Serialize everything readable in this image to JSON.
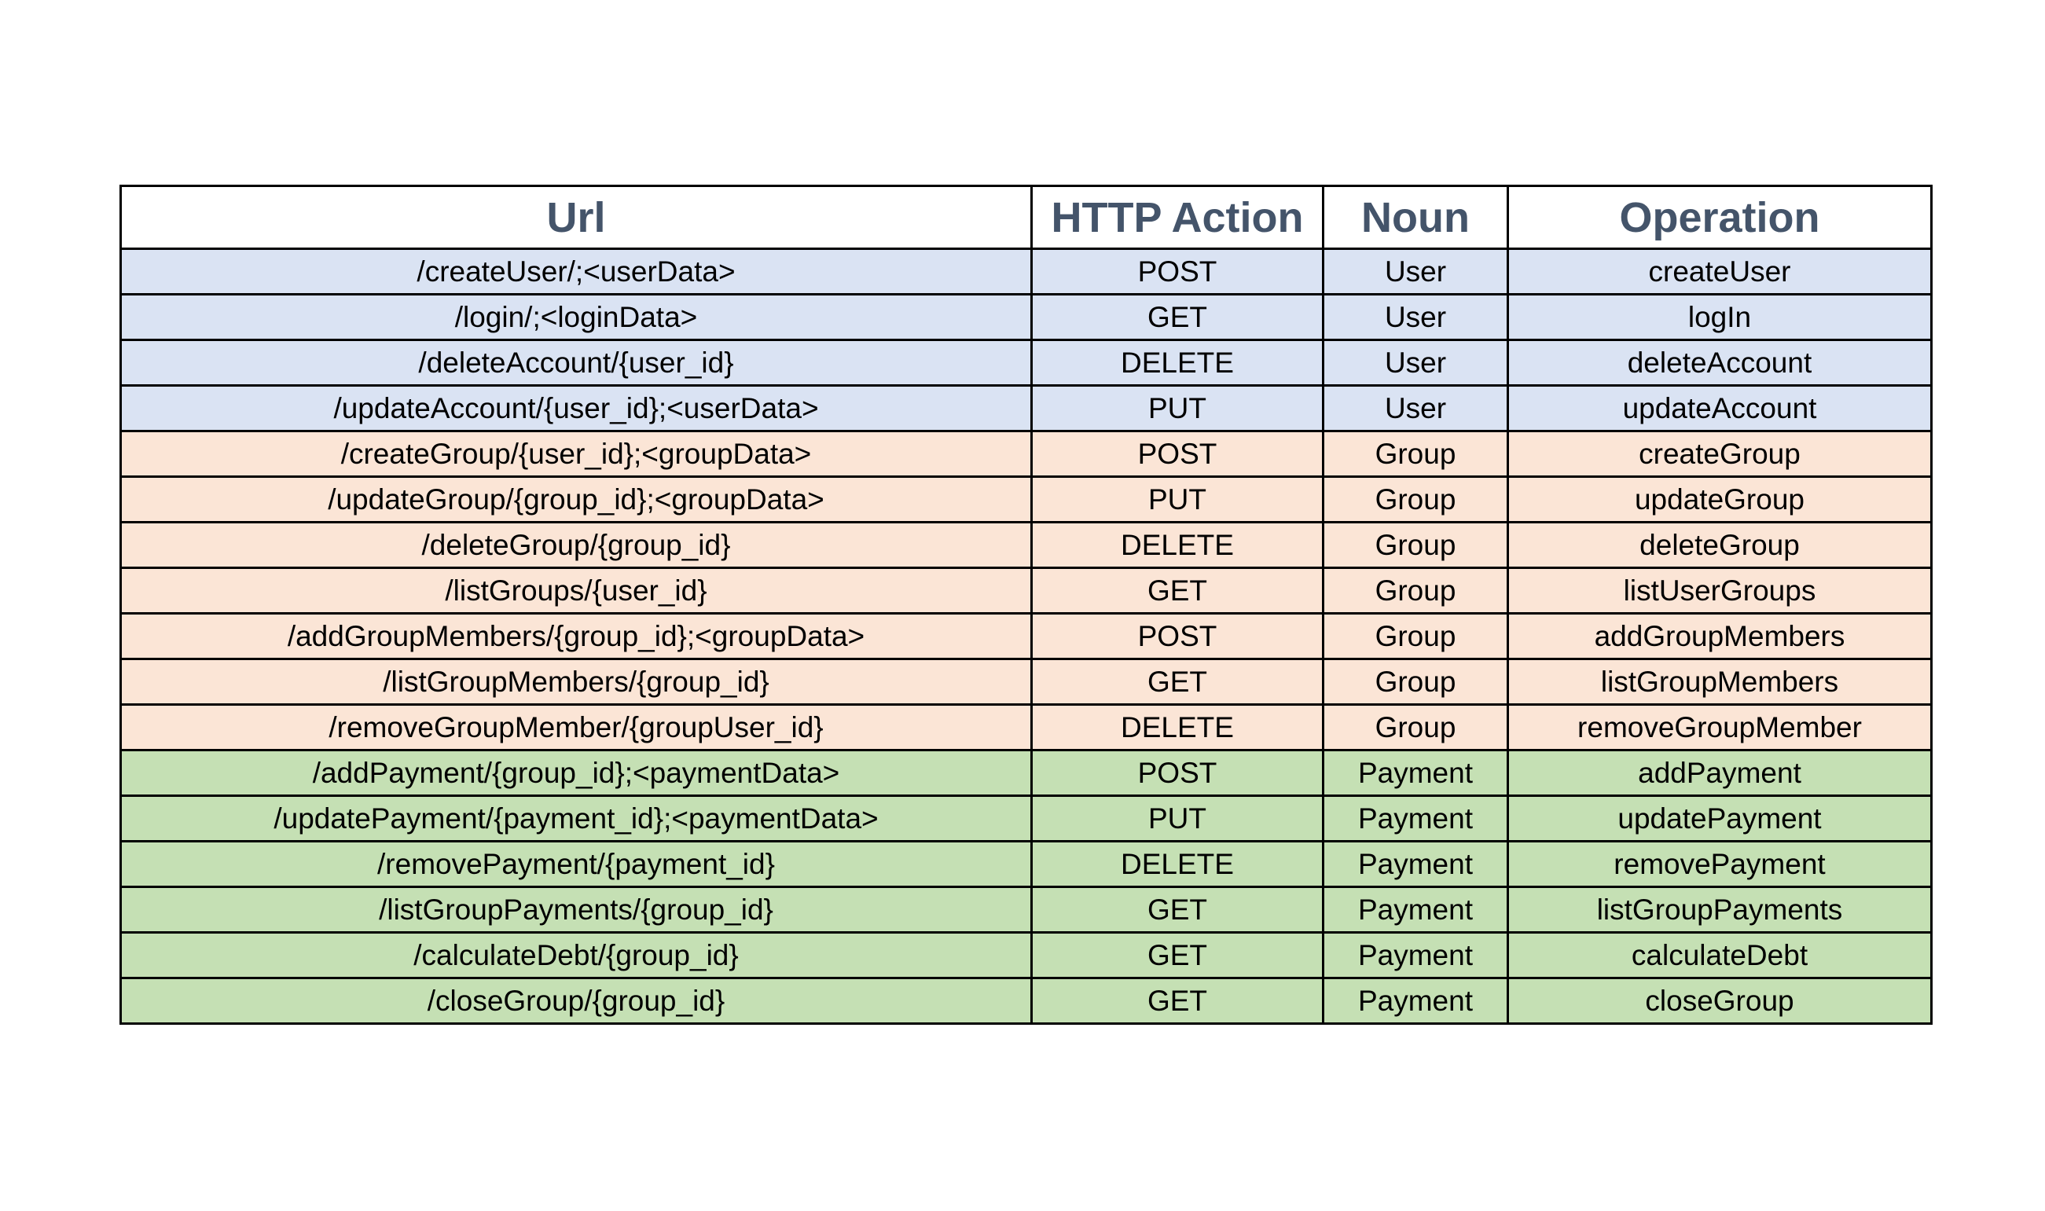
{
  "colors": {
    "User": "#dae3f3",
    "Group": "#fbe5d6",
    "Payment": "#c5e0b4",
    "header_text": "#44546a"
  },
  "headers": {
    "url": "Url",
    "action": "HTTP Action",
    "noun": "Noun",
    "operation": "Operation"
  },
  "rows": [
    {
      "url": "/createUser/;<userData>",
      "action": "POST",
      "noun": "User",
      "operation": "createUser"
    },
    {
      "url": "/login/;<loginData>",
      "action": "GET",
      "noun": "User",
      "operation": "logIn"
    },
    {
      "url": "/deleteAccount/{user_id}",
      "action": "DELETE",
      "noun": "User",
      "operation": "deleteAccount"
    },
    {
      "url": "/updateAccount/{user_id};<userData>",
      "action": "PUT",
      "noun": "User",
      "operation": "updateAccount"
    },
    {
      "url": "/createGroup/{user_id};<groupData>",
      "action": "POST",
      "noun": "Group",
      "operation": "createGroup"
    },
    {
      "url": "/updateGroup/{group_id};<groupData>",
      "action": "PUT",
      "noun": "Group",
      "operation": "updateGroup"
    },
    {
      "url": "/deleteGroup/{group_id}",
      "action": "DELETE",
      "noun": "Group",
      "operation": "deleteGroup"
    },
    {
      "url": "/listGroups/{user_id}",
      "action": "GET",
      "noun": "Group",
      "operation": "listUserGroups"
    },
    {
      "url": "/addGroupMembers/{group_id};<groupData>",
      "action": "POST",
      "noun": "Group",
      "operation": "addGroupMembers"
    },
    {
      "url": "/listGroupMembers/{group_id}",
      "action": "GET",
      "noun": "Group",
      "operation": "listGroupMembers"
    },
    {
      "url": "/removeGroupMember/{groupUser_id}",
      "action": "DELETE",
      "noun": "Group",
      "operation": "removeGroupMember"
    },
    {
      "url": "/addPayment/{group_id};<paymentData>",
      "action": "POST",
      "noun": "Payment",
      "operation": "addPayment"
    },
    {
      "url": "/updatePayment/{payment_id};<paymentData>",
      "action": "PUT",
      "noun": "Payment",
      "operation": "updatePayment"
    },
    {
      "url": "/removePayment/{payment_id}",
      "action": "DELETE",
      "noun": "Payment",
      "operation": "removePayment"
    },
    {
      "url": "/listGroupPayments/{group_id}",
      "action": "GET",
      "noun": "Payment",
      "operation": "listGroupPayments"
    },
    {
      "url": "/calculateDebt/{group_id}",
      "action": "GET",
      "noun": "Payment",
      "operation": "calculateDebt"
    },
    {
      "url": "/closeGroup/{group_id}",
      "action": "GET",
      "noun": "Payment",
      "operation": "closeGroup"
    }
  ]
}
